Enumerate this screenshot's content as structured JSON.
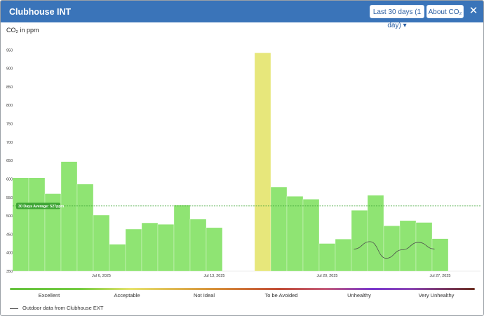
{
  "header": {
    "title": "Clubhouse INT",
    "range_label": "Last 30 days (1 day) ▾",
    "about_label": "About CO₂",
    "close_icon": "close-icon"
  },
  "chart_label": "CO₂ in ppm",
  "chart_data": {
    "type": "bar",
    "ylim": [
      350,
      960
    ],
    "yticks": [
      350,
      400,
      450,
      500,
      550,
      600,
      650,
      700,
      750,
      800,
      850,
      900,
      950
    ],
    "xticks": [
      {
        "index": 5,
        "label": "Jul 6, 2025"
      },
      {
        "index": 12,
        "label": "Jul 13, 2025"
      },
      {
        "index": 19,
        "label": "Jul 20, 2025"
      },
      {
        "index": 26,
        "label": "Jul 27, 2025"
      }
    ],
    "values": [
      603,
      603,
      560,
      647,
      586,
      502,
      423,
      464,
      481,
      477,
      529,
      491,
      468,
      null,
      null,
      942,
      578,
      553,
      545,
      425,
      437,
      515,
      556,
      473,
      487,
      482,
      438
    ],
    "average": 527,
    "average_label": "30 Days Average: 527ppm",
    "outdoor_series": [
      410,
      430,
      385,
      408,
      428,
      410
    ],
    "colors": {
      "excellent": "#8fe473",
      "acceptable": "#e7e77b",
      "average_line": "#3ea534",
      "outdoor": "#4d4d4d"
    }
  },
  "legend": {
    "scale": [
      "Excellent",
      "Acceptable",
      "Not Ideal",
      "To be Avoided",
      "Unhealthy",
      "Very Unhealthy"
    ],
    "outdoor_label": "Outdoor data from Clubhouse EXT"
  }
}
